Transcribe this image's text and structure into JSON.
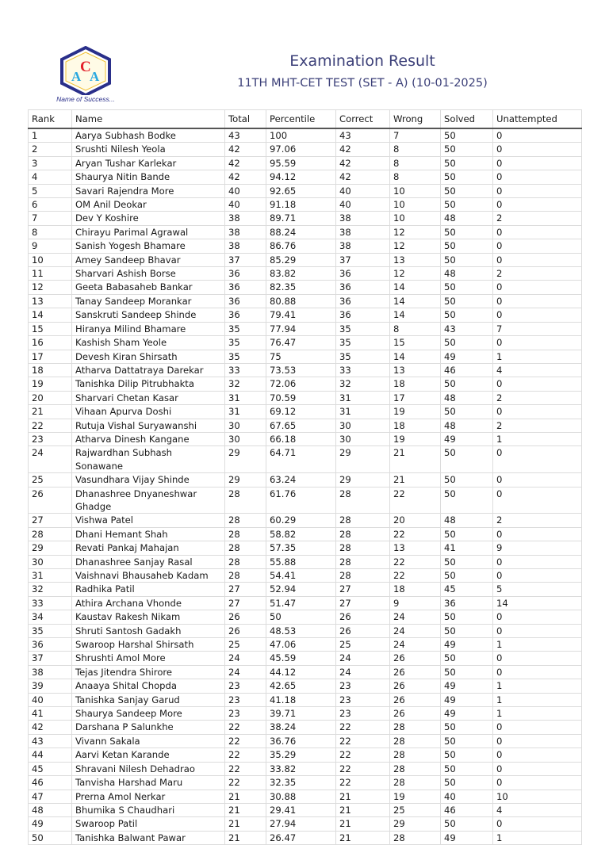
{
  "logo": {
    "letters": "ACA",
    "tagline": "Name of Success..."
  },
  "header": {
    "title": "Examination Result",
    "subtitle": "11TH MHT-CET TEST (SET - A) (10-01-2025)"
  },
  "colors": {
    "title": "#3b3f78",
    "logo_blue": "#2a2f8a",
    "logo_red": "#e3202a"
  },
  "table": {
    "columns": [
      "Rank",
      "Name",
      "Total",
      "Percentile",
      "Correct",
      "Wrong",
      "Solved",
      "Unattempted"
    ],
    "rows": [
      [
        "1",
        "Aarya Subhash Bodke",
        "43",
        "100",
        "43",
        "7",
        "50",
        "0"
      ],
      [
        "2",
        "Srushti Nilesh Yeola",
        "42",
        "97.06",
        "42",
        "8",
        "50",
        "0"
      ],
      [
        "3",
        "Aryan Tushar Karlekar",
        "42",
        "95.59",
        "42",
        "8",
        "50",
        "0"
      ],
      [
        "4",
        "Shaurya Nitin Bande",
        "42",
        "94.12",
        "42",
        "8",
        "50",
        "0"
      ],
      [
        "5",
        "Savari Rajendra More",
        "40",
        "92.65",
        "40",
        "10",
        "50",
        "0"
      ],
      [
        "6",
        "OM Anil Deokar",
        "40",
        "91.18",
        "40",
        "10",
        "50",
        "0"
      ],
      [
        "7",
        "Dev Y Koshire",
        "38",
        "89.71",
        "38",
        "10",
        "48",
        "2"
      ],
      [
        "8",
        "Chirayu Parimal Agrawal",
        "38",
        "88.24",
        "38",
        "12",
        "50",
        "0"
      ],
      [
        "9",
        "Sanish Yogesh Bhamare",
        "38",
        "86.76",
        "38",
        "12",
        "50",
        "0"
      ],
      [
        "10",
        "Amey Sandeep Bhavar",
        "37",
        "85.29",
        "37",
        "13",
        "50",
        "0"
      ],
      [
        "11",
        "Sharvari Ashish Borse",
        "36",
        "83.82",
        "36",
        "12",
        "48",
        "2"
      ],
      [
        "12",
        "Geeta Babasaheb Bankar",
        "36",
        "82.35",
        "36",
        "14",
        "50",
        "0"
      ],
      [
        "13",
        "Tanay Sandeep Morankar",
        "36",
        "80.88",
        "36",
        "14",
        "50",
        "0"
      ],
      [
        "14",
        "Sanskruti Sandeep Shinde",
        "36",
        "79.41",
        "36",
        "14",
        "50",
        "0"
      ],
      [
        "15",
        "Hiranya Milind Bhamare",
        "35",
        "77.94",
        "35",
        "8",
        "43",
        "7"
      ],
      [
        "16",
        "Kashish Sham Yeole",
        "35",
        "76.47",
        "35",
        "15",
        "50",
        "0"
      ],
      [
        "17",
        "Devesh Kiran Shirsath",
        "35",
        "75",
        "35",
        "14",
        "49",
        "1"
      ],
      [
        "18",
        "Atharva Dattatraya Darekar",
        "33",
        "73.53",
        "33",
        "13",
        "46",
        "4"
      ],
      [
        "19",
        "Tanishka Dilip Pitrubhakta",
        "32",
        "72.06",
        "32",
        "18",
        "50",
        "0"
      ],
      [
        "20",
        "Sharvari Chetan Kasar",
        "31",
        "70.59",
        "31",
        "17",
        "48",
        "2"
      ],
      [
        "21",
        "Vihaan Apurva Doshi",
        "31",
        "69.12",
        "31",
        "19",
        "50",
        "0"
      ],
      [
        "22",
        "Rutuja Vishal Suryawanshi",
        "30",
        "67.65",
        "30",
        "18",
        "48",
        "2"
      ],
      [
        "23",
        "Atharva Dinesh Kangane",
        "30",
        "66.18",
        "30",
        "19",
        "49",
        "1"
      ],
      [
        "24",
        "Rajwardhan Subhash Sonawane",
        "29",
        "64.71",
        "29",
        "21",
        "50",
        "0"
      ],
      [
        "25",
        "Vasundhara Vijay Shinde",
        "29",
        "63.24",
        "29",
        "21",
        "50",
        "0"
      ],
      [
        "26",
        "Dhanashree Dnyaneshwar Ghadge",
        "28",
        "61.76",
        "28",
        "22",
        "50",
        "0"
      ],
      [
        "27",
        "Vishwa Patel",
        "28",
        "60.29",
        "28",
        "20",
        "48",
        "2"
      ],
      [
        "28",
        "Dhani Hemant Shah",
        "28",
        "58.82",
        "28",
        "22",
        "50",
        "0"
      ],
      [
        "29",
        "Revati Pankaj Mahajan",
        "28",
        "57.35",
        "28",
        "13",
        "41",
        "9"
      ],
      [
        "30",
        "Dhanashree Sanjay Rasal",
        "28",
        "55.88",
        "28",
        "22",
        "50",
        "0"
      ],
      [
        "31",
        "Vaishnavi Bhausaheb Kadam",
        "28",
        "54.41",
        "28",
        "22",
        "50",
        "0"
      ],
      [
        "32",
        "Radhika Patil",
        "27",
        "52.94",
        "27",
        "18",
        "45",
        "5"
      ],
      [
        "33",
        "Athira Archana Vhonde",
        "27",
        "51.47",
        "27",
        "9",
        "36",
        "14"
      ],
      [
        "34",
        "Kaustav Rakesh Nikam",
        "26",
        "50",
        "26",
        "24",
        "50",
        "0"
      ],
      [
        "35",
        "Shruti Santosh Gadakh",
        "26",
        "48.53",
        "26",
        "24",
        "50",
        "0"
      ],
      [
        "36",
        "Swaroop Harshal Shirsath",
        "25",
        "47.06",
        "25",
        "24",
        "49",
        "1"
      ],
      [
        "37",
        "Shrushti Amol More",
        "24",
        "45.59",
        "24",
        "26",
        "50",
        "0"
      ],
      [
        "38",
        "Tejas Jitendra Shirore",
        "24",
        "44.12",
        "24",
        "26",
        "50",
        "0"
      ],
      [
        "39",
        "Anaaya Shital Chopda",
        "23",
        "42.65",
        "23",
        "26",
        "49",
        "1"
      ],
      [
        "40",
        "Tanishka Sanjay Garud",
        "23",
        "41.18",
        "23",
        "26",
        "49",
        "1"
      ],
      [
        "41",
        "Shaurya Sandeep More",
        "23",
        "39.71",
        "23",
        "26",
        "49",
        "1"
      ],
      [
        "42",
        "Darshana P Salunkhe",
        "22",
        "38.24",
        "22",
        "28",
        "50",
        "0"
      ],
      [
        "43",
        "Vivann Sakala",
        "22",
        "36.76",
        "22",
        "28",
        "50",
        "0"
      ],
      [
        "44",
        "Aarvi Ketan Karande",
        "22",
        "35.29",
        "22",
        "28",
        "50",
        "0"
      ],
      [
        "45",
        "Shravani Nilesh Dehadrao",
        "22",
        "33.82",
        "22",
        "28",
        "50",
        "0"
      ],
      [
        "46",
        "Tanvisha Harshad Maru",
        "22",
        "32.35",
        "22",
        "28",
        "50",
        "0"
      ],
      [
        "47",
        "Prerna Amol Nerkar",
        "21",
        "30.88",
        "21",
        "19",
        "40",
        "10"
      ],
      [
        "48",
        "Bhumika S Chaudhari",
        "21",
        "29.41",
        "21",
        "25",
        "46",
        "4"
      ],
      [
        "49",
        "Swaroop Patil",
        "21",
        "27.94",
        "21",
        "29",
        "50",
        "0"
      ],
      [
        "50",
        "Tanishka Balwant Pawar",
        "21",
        "26.47",
        "21",
        "28",
        "49",
        "1"
      ]
    ]
  }
}
